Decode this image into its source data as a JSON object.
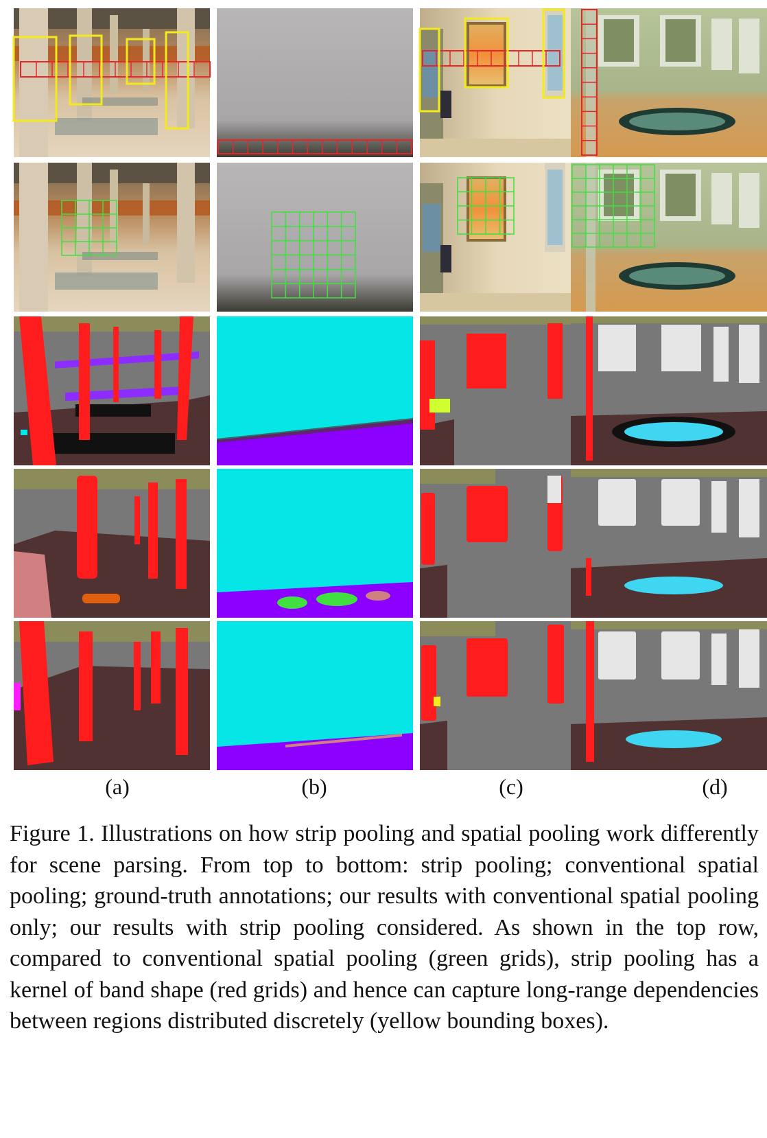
{
  "column_labels": [
    "(a)",
    "(b)",
    "(c)",
    "(d)"
  ],
  "caption": {
    "figure_label": "Figure 1.",
    "text": "Illustrations on how strip pooling and spatial pooling work differently for scene parsing.  From top to bottom: strip pooling; conventional spatial pooling; ground-truth annotations; our results with conventional spatial pooling only; our results with strip pooling considered.  As shown in the top row, compared to conventional spatial pooling (green grids), strip pooling has a kernel of band shape (red grids) and hence can capture long-range dependencies between regions distributed discretely (yellow bounding boxes)."
  },
  "colors": {
    "strip_grid": "#e8262a",
    "spatial_grid": "#3fe040",
    "bounding_box": "#f3ea1e",
    "seg_column": "#ff1c1c",
    "seg_wall": "#787878",
    "seg_floor": "#503232",
    "seg_ceiling": "#8c8c5a",
    "seg_sky": "#06e6e6",
    "seg_ground": "#8c00ff",
    "seg_window": "#e6e6e6",
    "seg_water": "#3ed6f0"
  }
}
